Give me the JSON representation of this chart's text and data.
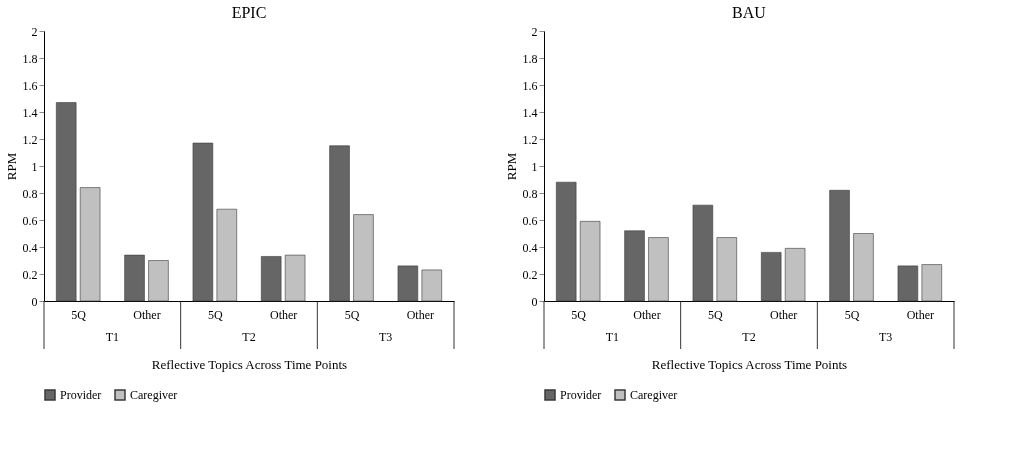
{
  "chart_data": [
    {
      "type": "bar",
      "title": "EPIC",
      "ylabel": "RPM",
      "xlabel": "Reflective Topics Across Time Points",
      "categories": [
        "5Q",
        "Other",
        "5Q",
        "Other",
        "5Q",
        "Other"
      ],
      "annotations": [
        "T1",
        "T2",
        "T3"
      ],
      "series": [
        {
          "name": "Provider",
          "color": "#666666",
          "values": [
            1.47,
            0.34,
            1.17,
            0.33,
            1.15,
            0.26
          ]
        },
        {
          "name": "Caregiver",
          "color": "#c0c0c0",
          "values": [
            0.84,
            0.3,
            0.68,
            0.34,
            0.64,
            0.23
          ]
        }
      ],
      "ylim": [
        0,
        2
      ],
      "yticks": [
        0,
        0.2,
        0.4,
        0.6,
        0.8,
        1,
        1.2,
        1.4,
        1.6,
        1.8,
        2
      ],
      "grid": false,
      "legend": "bottom"
    },
    {
      "type": "bar",
      "title": "BAU",
      "ylabel": "RPM",
      "xlabel": "Reflective Topics Across Time Points",
      "categories": [
        "5Q",
        "Other",
        "5Q",
        "Other",
        "5Q",
        "Other"
      ],
      "annotations": [
        "T1",
        "T2",
        "T3"
      ],
      "series": [
        {
          "name": "Provider",
          "color": "#666666",
          "values": [
            0.88,
            0.52,
            0.71,
            0.36,
            0.82,
            0.26
          ]
        },
        {
          "name": "Caregiver",
          "color": "#c0c0c0",
          "values": [
            0.59,
            0.47,
            0.47,
            0.39,
            0.5,
            0.27
          ]
        }
      ],
      "ylim": [
        0,
        2
      ],
      "yticks": [
        0,
        0.2,
        0.4,
        0.6,
        0.8,
        1,
        1.2,
        1.4,
        1.6,
        1.8,
        2
      ],
      "grid": false,
      "legend": "bottom"
    }
  ]
}
